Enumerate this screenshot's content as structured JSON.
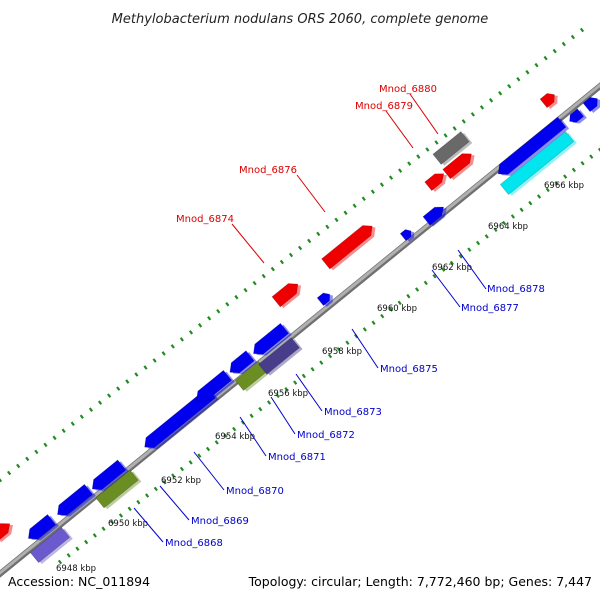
{
  "title": "Methylobacterium nodulans ORS 2060, complete genome",
  "footer": {
    "accession": "Accession: NC_011894",
    "summary": "Topology: circular; Length: 7,772,460 bp; Genes: 7,447"
  },
  "colors": {
    "backbone": "#9e9e9e",
    "tick": "#228b22",
    "forward_label": "#dd0000",
    "reverse_label": "#0000cc",
    "gene_blue": "#0000ee",
    "gene_red": "#ee0000",
    "gene_cyan": "#00e5ee",
    "gene_olive": "#6b8e23",
    "gene_slate": "#6a5acd",
    "gene_darkslate": "#483d8b",
    "gene_gray": "#696969"
  },
  "scale_ticks": [
    {
      "label": "6948 kbp",
      "kbp": 6948
    },
    {
      "label": "6950 kbp",
      "kbp": 6950
    },
    {
      "label": "6952 kbp",
      "kbp": 6952
    },
    {
      "label": "6954 kbp",
      "kbp": 6954
    },
    {
      "label": "6956 kbp",
      "kbp": 6956
    },
    {
      "label": "6958 kbp",
      "kbp": 6958
    },
    {
      "label": "6960 kbp",
      "kbp": 6960
    },
    {
      "label": "6962 kbp",
      "kbp": 6962
    },
    {
      "label": "6964 kbp",
      "kbp": 6964
    },
    {
      "label": "6966 kbp",
      "kbp": 6966
    }
  ],
  "forward_labels": [
    "Mnod_6880",
    "Mnod_6879",
    "Mnod_6876",
    "Mnod_6874"
  ],
  "reverse_labels": [
    "Mnod_6878",
    "Mnod_6877",
    "Mnod_6875",
    "Mnod_6873",
    "Mnod_6872",
    "Mnod_6871",
    "Mnod_6870",
    "Mnod_6869",
    "Mnod_6868"
  ]
}
